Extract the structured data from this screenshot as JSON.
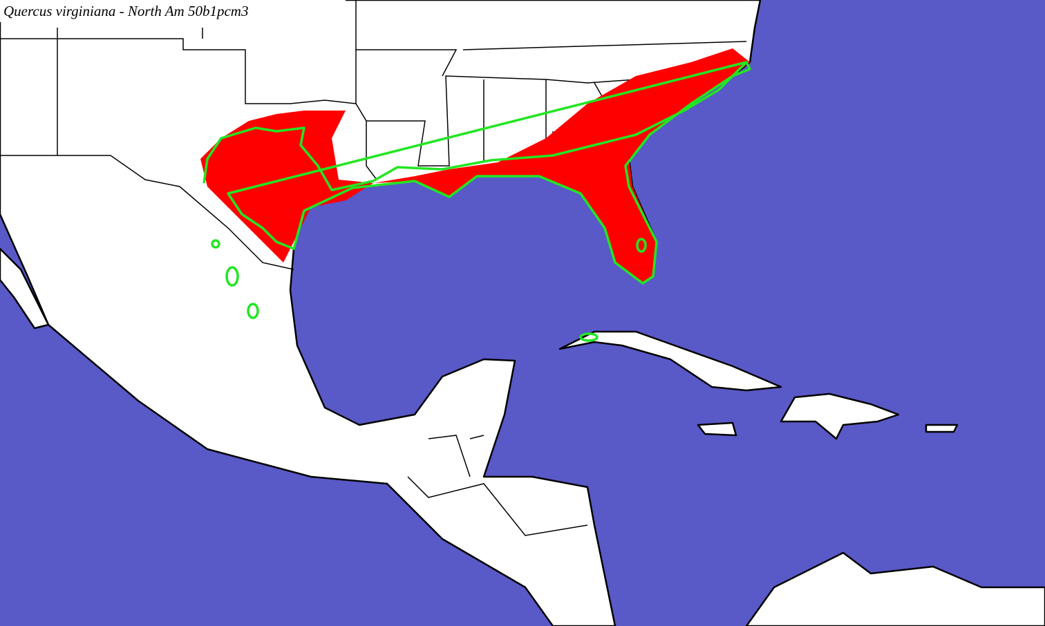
{
  "title": "Quercus virginiana - North Am 50b1pcm3"
}
